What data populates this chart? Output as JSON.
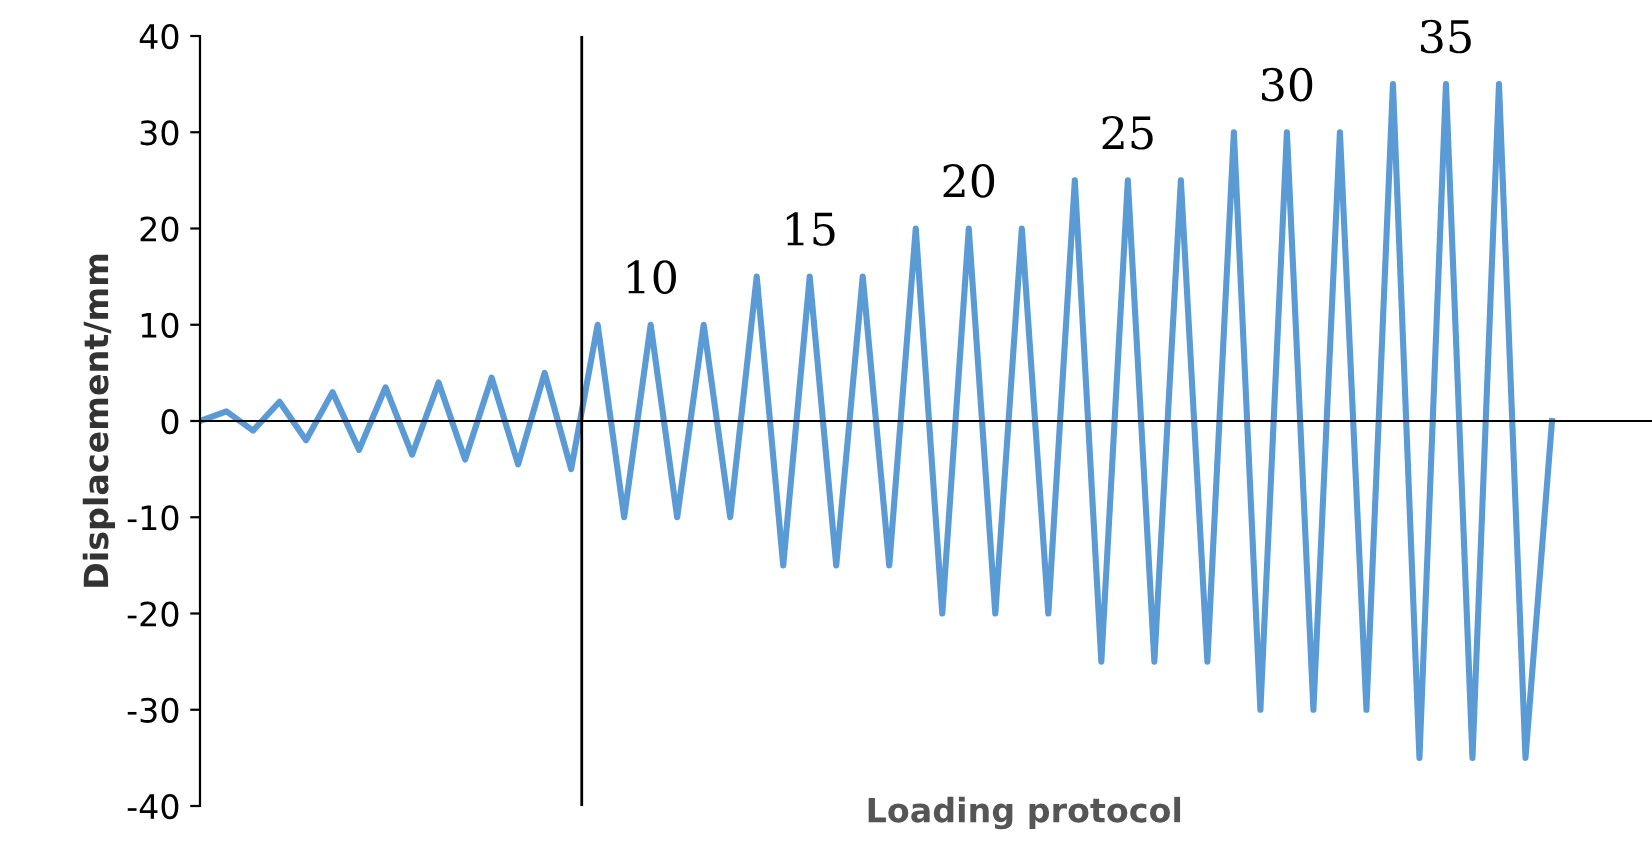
{
  "chart_data": {
    "type": "line",
    "xlabel": "Loading protocol",
    "ylabel": "Displacement/mm",
    "categories": [
      null,
      null,
      null,
      null,
      null,
      null,
      null,
      null,
      null,
      null,
      null,
      null,
      null,
      null,
      null,
      null,
      null,
      null,
      null,
      null,
      null,
      null,
      null,
      null,
      null,
      null,
      null,
      null,
      null,
      null,
      null,
      null,
      null,
      null,
      null,
      null,
      null,
      null,
      null,
      null,
      null,
      null,
      null,
      null,
      null,
      null,
      null,
      null,
      null,
      null,
      null,
      null
    ],
    "series": [
      {
        "color": "#5b9bd5",
        "values": [
          0,
          1,
          -1,
          2,
          -2,
          3,
          -3,
          3.5,
          -3.5,
          4,
          -4,
          4.5,
          -4.5,
          5,
          -5,
          10,
          -10,
          10,
          -10,
          10,
          -10,
          15,
          -15,
          15,
          -15,
          15,
          -15,
          20,
          -20,
          20,
          -20,
          20,
          -20,
          25,
          -25,
          25,
          -25,
          25,
          -25,
          30,
          -30,
          30,
          -30,
          30,
          -30,
          35,
          -35,
          35,
          -35,
          35,
          -35,
          0
        ]
      }
    ],
    "ylim": [
      -40,
      40
    ],
    "yticks": [
      -40,
      -30,
      -20,
      -10,
      0,
      10,
      20,
      30,
      40
    ],
    "tick_labels": "y",
    "grid": false,
    "legend": false,
    "marker": "none",
    "line_style": "solid",
    "annotations": [
      "10",
      "15",
      "20",
      "25",
      "30",
      "35"
    ]
  }
}
